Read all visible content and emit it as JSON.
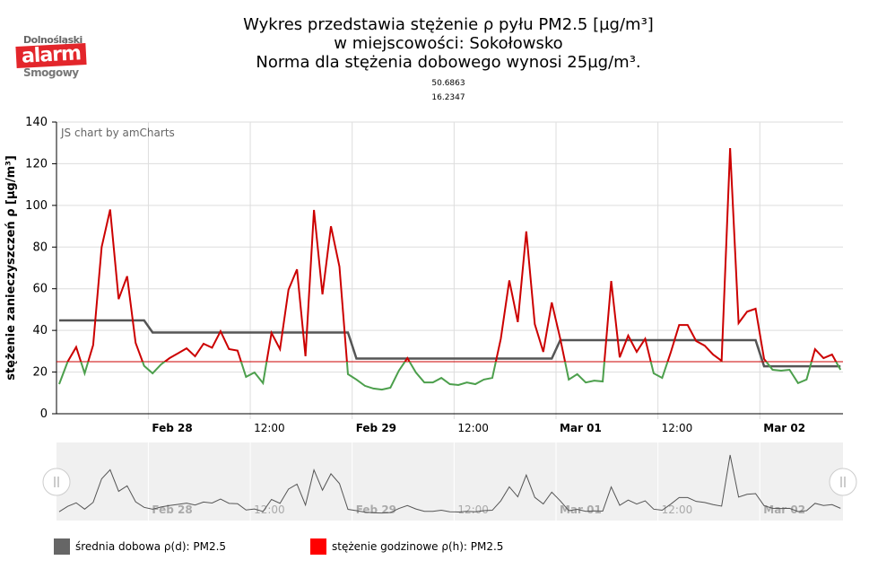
{
  "logo": {
    "top": "Dolnośląski",
    "mid": "alarm",
    "bottom": "Smogowy"
  },
  "title": [
    "Wykres przedstawia stężenie ρ pyłu PM2.5 [µg/m³]",
    "w miejscowości: Sokołowsko",
    "Norma dla stężenia dobowego wynosi 25µg/m³."
  ],
  "coordinates": {
    "lat": "50.6863",
    "lon": "16.2347"
  },
  "credit": "JS chart by amCharts",
  "legend": [
    {
      "label": "średnia dobowa ρ(d): PM2.5",
      "color": "#666666"
    },
    {
      "label": "stężenie godzinowe ρ(h): PM2.5",
      "color": "#ff0000"
    }
  ],
  "colors": {
    "above": "#cc0000",
    "below": "#4c9f4c",
    "avg": "#555555",
    "norm": "#cc0000"
  },
  "chart_data": {
    "type": "line",
    "ylabel": "stężenie zanieczyszczeń ρ [µg/m³]",
    "ylim": [
      0,
      140
    ],
    "yticks": [
      "0",
      "20",
      "40",
      "60",
      "80",
      "100",
      "120",
      "140"
    ],
    "xtick_labels": [
      {
        "label": "Feb 28",
        "bold": true,
        "hour": 10.5
      },
      {
        "label": "12:00",
        "bold": false,
        "hour": 22.5
      },
      {
        "label": "Feb 29",
        "bold": true,
        "hour": 34.5
      },
      {
        "label": "12:00",
        "bold": false,
        "hour": 46.5
      },
      {
        "label": "Mar 01",
        "bold": true,
        "hour": 58.5
      },
      {
        "label": "12:00",
        "bold": false,
        "hour": 70.5
      },
      {
        "label": "Mar 02",
        "bold": true,
        "hour": 82.5
      }
    ],
    "interval_hours": 1,
    "norm": 25,
    "series": [
      {
        "name": "stężenie godzinowe ρ(h): PM2.5",
        "values": [
          14.2,
          25,
          32,
          19.4,
          33,
          80,
          98,
          55,
          66,
          34,
          23,
          19.4,
          23.7,
          26.7,
          29,
          31.4,
          27.6,
          33.6,
          31.7,
          39.6,
          31,
          30.3,
          17.7,
          19.8,
          14.7,
          38.8,
          31,
          59.5,
          69.3,
          27.6,
          97.8,
          57.3,
          90,
          70.6,
          19,
          16.4,
          13.4,
          12.1,
          11.6,
          12.5,
          20.7,
          26.7,
          19.8,
          15,
          15,
          17.2,
          14.2,
          13.8,
          15,
          14.2,
          16.4,
          17.2,
          36,
          64,
          44,
          87.5,
          43,
          29.7,
          53.4,
          36,
          16.4,
          19,
          15,
          15.9,
          15.5,
          63.7,
          27.1,
          37.5,
          29.7,
          36,
          19.4,
          17.2,
          29.3,
          42.6,
          42.6,
          34.9,
          32.7,
          28.4,
          25.4,
          127.5,
          43.5,
          49,
          50.4,
          26.3,
          21.1,
          20.7,
          21.1,
          14.7,
          16.4,
          31,
          26.7,
          28.4,
          21.1
        ]
      },
      {
        "name": "średnia dobowa ρ(d): PM2.5",
        "daily": [
          {
            "from": 0,
            "to": 10,
            "value": 44.8
          },
          {
            "from": 11,
            "to": 34,
            "value": 39.0
          },
          {
            "from": 35,
            "to": 58,
            "value": 26.5
          },
          {
            "from": 59,
            "to": 82,
            "value": 35.3
          },
          {
            "from": 83,
            "to": 92,
            "value": 22.8
          }
        ]
      }
    ]
  }
}
